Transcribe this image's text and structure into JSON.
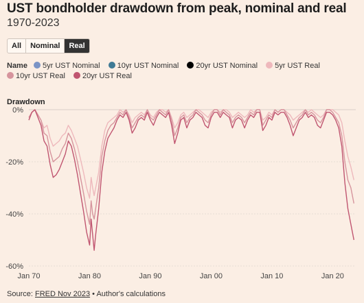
{
  "header": {
    "title": "UST bondholder drawdown from peak, nominal and real",
    "subtitle": "1970-2023"
  },
  "toggle": {
    "options": [
      "All",
      "Nominal",
      "Real"
    ],
    "selected": "Real"
  },
  "legend": {
    "title": "Name",
    "items": [
      {
        "label": "5yr UST Nominal",
        "color": "#7b94c6"
      },
      {
        "label": "10yr UST Nominal",
        "color": "#3f7a95"
      },
      {
        "label": "20yr UST Nominal",
        "color": "#000000"
      },
      {
        "label": "5yr UST Real",
        "color": "#eeb8bc"
      },
      {
        "label": "10yr UST Real",
        "color": "#d6949d"
      },
      {
        "label": "20yr UST Real",
        "color": "#c05570"
      }
    ]
  },
  "source": {
    "prefix": "Source:",
    "link": "FRED Nov 2023",
    "suffix": "• Author's calculations"
  },
  "chart_data": {
    "type": "line",
    "ylabel": "Drawdown",
    "xlabel": "",
    "xlim": [
      1970,
      2023.8
    ],
    "ylim": [
      -60,
      0
    ],
    "yticks": [
      0,
      -20,
      -40,
      -60
    ],
    "ytick_labels": [
      "0%",
      "-20%",
      "-40%",
      "-60%"
    ],
    "xticks": [
      1970,
      1980,
      1990,
      2000,
      2010,
      2020
    ],
    "xtick_labels": [
      "Jan 70",
      "Jan 80",
      "Jan 90",
      "Jan 00",
      "Jan 10",
      "Jan 20"
    ],
    "grid": true,
    "x": [
      1970,
      1970.5,
      1971,
      1971.5,
      1972,
      1972.5,
      1973,
      1973.5,
      1974,
      1974.5,
      1975,
      1975.5,
      1976,
      1976.5,
      1977,
      1977.5,
      1978,
      1978.5,
      1979,
      1979.5,
      1980,
      1980.25,
      1980.5,
      1980.75,
      1981,
      1981.5,
      1982,
      1982.5,
      1983,
      1983.5,
      1984,
      1984.5,
      1985,
      1985.5,
      1986,
      1986.5,
      1987,
      1987.5,
      1988,
      1988.5,
      1989,
      1989.5,
      1990,
      1990.5,
      1991,
      1991.5,
      1992,
      1992.5,
      1993,
      1993.5,
      1994,
      1994.5,
      1995,
      1995.5,
      1996,
      1996.5,
      1997,
      1997.5,
      1998,
      1998.5,
      1999,
      1999.5,
      2000,
      2000.5,
      2001,
      2001.5,
      2002,
      2002.5,
      2003,
      2003.5,
      2004,
      2004.5,
      2005,
      2005.5,
      2006,
      2006.5,
      2007,
      2007.5,
      2008,
      2008.5,
      2009,
      2009.5,
      2010,
      2010.5,
      2011,
      2011.5,
      2012,
      2012.5,
      2013,
      2013.5,
      2014,
      2014.5,
      2015,
      2015.5,
      2016,
      2016.5,
      2017,
      2017.5,
      2018,
      2018.5,
      2019,
      2019.5,
      2020,
      2020.5,
      2021,
      2021.5,
      2022,
      2022.5,
      2023,
      2023.5
    ],
    "series": [
      {
        "name": "5yr UST Real",
        "color": "#eeb8bc",
        "values": [
          -3,
          -1,
          0,
          -2,
          -4,
          -7,
          -6,
          -11,
          -14,
          -13,
          -12,
          -10,
          -9,
          -6,
          -8,
          -11,
          -14,
          -19,
          -24,
          -30,
          -34,
          -26,
          -30,
          -33,
          -30,
          -24,
          -14,
          -8,
          -5,
          -4,
          -3,
          -2,
          0,
          -1,
          0,
          -2,
          -5,
          -3,
          -2,
          -1,
          -2,
          0,
          -2,
          -3,
          -1,
          0,
          0,
          -1,
          0,
          -3,
          -7,
          -5,
          -2,
          -1,
          -3,
          -2,
          -1,
          0,
          0,
          -1,
          -2,
          -3,
          -1,
          0,
          0,
          -1,
          0,
          0,
          -1,
          -3,
          -2,
          -1,
          -2,
          -3,
          -2,
          0,
          -1,
          0,
          0,
          -4,
          -3,
          -1,
          -2,
          0,
          -1,
          0,
          0,
          -1,
          -2,
          -4,
          -3,
          -2,
          -1,
          0,
          -1,
          0,
          -1,
          -2,
          -3,
          -2,
          0,
          0,
          0,
          -1,
          -2,
          -5,
          -12,
          -18,
          -22,
          -27
        ]
      },
      {
        "name": "10yr UST Real",
        "color": "#d6949d",
        "values": [
          -3,
          -1,
          0,
          -2,
          -4,
          -9,
          -10,
          -16,
          -20,
          -19,
          -18,
          -15,
          -13,
          -9,
          -11,
          -15,
          -20,
          -26,
          -32,
          -39,
          -44,
          -35,
          -40,
          -42,
          -38,
          -30,
          -18,
          -12,
          -8,
          -6,
          -5,
          -3,
          -1,
          -2,
          0,
          -3,
          -7,
          -5,
          -3,
          -2,
          -3,
          0,
          -3,
          -4,
          -2,
          0,
          -1,
          -2,
          0,
          -4,
          -10,
          -7,
          -3,
          -2,
          -5,
          -3,
          -2,
          0,
          -1,
          -2,
          -4,
          -5,
          -2,
          0,
          0,
          -2,
          0,
          -1,
          -2,
          -5,
          -3,
          -2,
          -3,
          -5,
          -3,
          -1,
          -2,
          0,
          0,
          -6,
          -4,
          -2,
          -3,
          0,
          -1,
          0,
          0,
          -2,
          -4,
          -7,
          -5,
          -3,
          -2,
          0,
          -2,
          -1,
          -2,
          -4,
          -5,
          -3,
          0,
          0,
          -1,
          -3,
          -5,
          -10,
          -20,
          -27,
          -30,
          -36
        ]
      },
      {
        "name": "20yr UST Real",
        "color": "#c05570",
        "values": [
          -4,
          -1,
          0,
          -3,
          -6,
          -12,
          -14,
          -21,
          -26,
          -25,
          -23,
          -20,
          -17,
          -12,
          -14,
          -19,
          -25,
          -32,
          -39,
          -47,
          -52,
          -42,
          -48,
          -54,
          -48,
          -38,
          -24,
          -16,
          -11,
          -9,
          -7,
          -4,
          -2,
          -3,
          -1,
          -4,
          -9,
          -7,
          -4,
          -3,
          -4,
          -1,
          -4,
          -6,
          -3,
          -1,
          -2,
          -3,
          -1,
          -6,
          -13,
          -9,
          -4,
          -3,
          -7,
          -4,
          -3,
          -1,
          -2,
          -3,
          -6,
          -7,
          -3,
          -1,
          -1,
          -3,
          -1,
          -2,
          -3,
          -7,
          -4,
          -3,
          -4,
          -7,
          -4,
          -2,
          -3,
          -1,
          -1,
          -8,
          -6,
          -3,
          -4,
          -1,
          -2,
          -1,
          -1,
          -3,
          -6,
          -10,
          -7,
          -4,
          -3,
          -1,
          -3,
          -2,
          -3,
          -6,
          -7,
          -4,
          -1,
          -1,
          -2,
          -4,
          -7,
          -14,
          -28,
          -38,
          -44,
          -50
        ]
      }
    ]
  }
}
